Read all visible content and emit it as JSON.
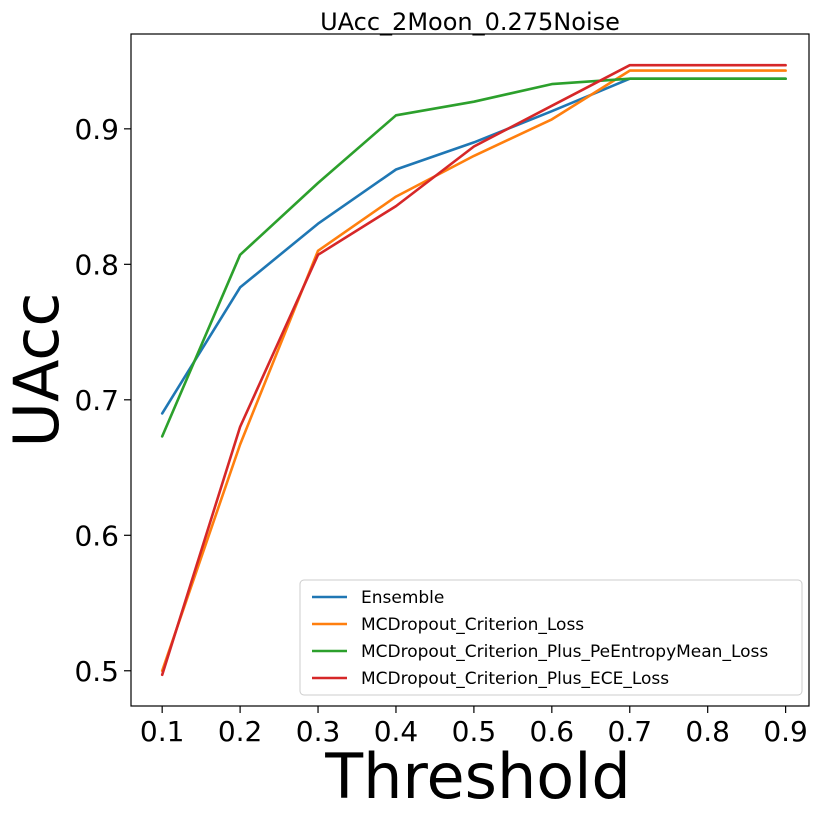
{
  "chart_data": {
    "type": "line",
    "title": "UAcc_2Moon_0.275Noise",
    "xlabel": "Threshold",
    "ylabel": "UAcc",
    "x": [
      0.1,
      0.2,
      0.3,
      0.4,
      0.5,
      0.6,
      0.7,
      0.8,
      0.9
    ],
    "x_tick_labels": [
      "0.1",
      "0.2",
      "0.3",
      "0.4",
      "0.5",
      "0.6",
      "0.7",
      "0.8",
      "0.9"
    ],
    "xlim": [
      0.06,
      0.93
    ],
    "ylim": [
      0.474,
      0.97
    ],
    "y_ticks": [
      0.5,
      0.6,
      0.7,
      0.8,
      0.9
    ],
    "y_tick_labels": [
      "0.5",
      "0.6",
      "0.7",
      "0.8",
      "0.9"
    ],
    "grid": false,
    "legend_position": "lower-right",
    "series": [
      {
        "name": "Ensemble",
        "color": "#1f77b4",
        "values": [
          0.69,
          0.783,
          0.83,
          0.87,
          0.89,
          0.913,
          0.937,
          0.937,
          0.937
        ]
      },
      {
        "name": "MCDropout_Criterion_Loss",
        "color": "#ff7f0e",
        "values": [
          0.5,
          0.667,
          0.81,
          0.85,
          0.88,
          0.907,
          0.943,
          0.943,
          0.943
        ]
      },
      {
        "name": "MCDropout_Criterion_Plus_PeEntropyMean_Loss",
        "color": "#2ca02c",
        "values": [
          0.673,
          0.807,
          0.86,
          0.91,
          0.92,
          0.933,
          0.937,
          0.937,
          0.937
        ]
      },
      {
        "name": "MCDropout_Criterion_Plus_ECE_Loss",
        "color": "#d62728",
        "values": [
          0.497,
          0.68,
          0.807,
          0.843,
          0.887,
          0.917,
          0.947,
          0.947,
          0.947
        ]
      }
    ]
  }
}
